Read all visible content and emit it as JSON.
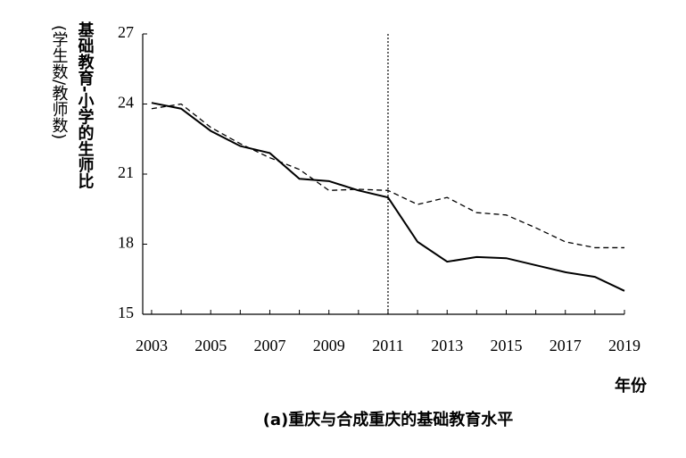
{
  "chart_data": {
    "type": "line",
    "ylabel": "基础教育-小学的生师比",
    "ylabel_note": "(学生数/教师数)",
    "xlabel": "年份",
    "caption": "(a)重庆与合成重庆的基础教育水平",
    "x": [
      2003,
      2004,
      2005,
      2006,
      2007,
      2008,
      2009,
      2010,
      2011,
      2012,
      2013,
      2014,
      2015,
      2016,
      2017,
      2018,
      2019
    ],
    "series": [
      {
        "color": "#000000",
        "style": "solid",
        "values": [
          24.05,
          23.8,
          22.85,
          22.2,
          21.9,
          20.8,
          20.7,
          20.3,
          20.0,
          18.1,
          17.25,
          17.45,
          17.4,
          17.1,
          16.8,
          16.6,
          16.0
        ]
      },
      {
        "color": "#000000",
        "style": "dashed",
        "values": [
          23.8,
          24.0,
          23.0,
          22.3,
          21.7,
          21.2,
          20.3,
          20.35,
          20.3,
          19.7,
          20.0,
          19.35,
          19.25,
          18.7,
          18.1,
          17.85,
          17.85
        ]
      }
    ],
    "vline": 2011,
    "xlim": [
      2002.7,
      2019
    ],
    "xticks": [
      2003,
      2005,
      2007,
      2009,
      2011,
      2013,
      2015,
      2017,
      2019
    ],
    "ylim": [
      15,
      27
    ],
    "yticks": [
      15,
      18,
      21,
      24,
      27
    ]
  }
}
